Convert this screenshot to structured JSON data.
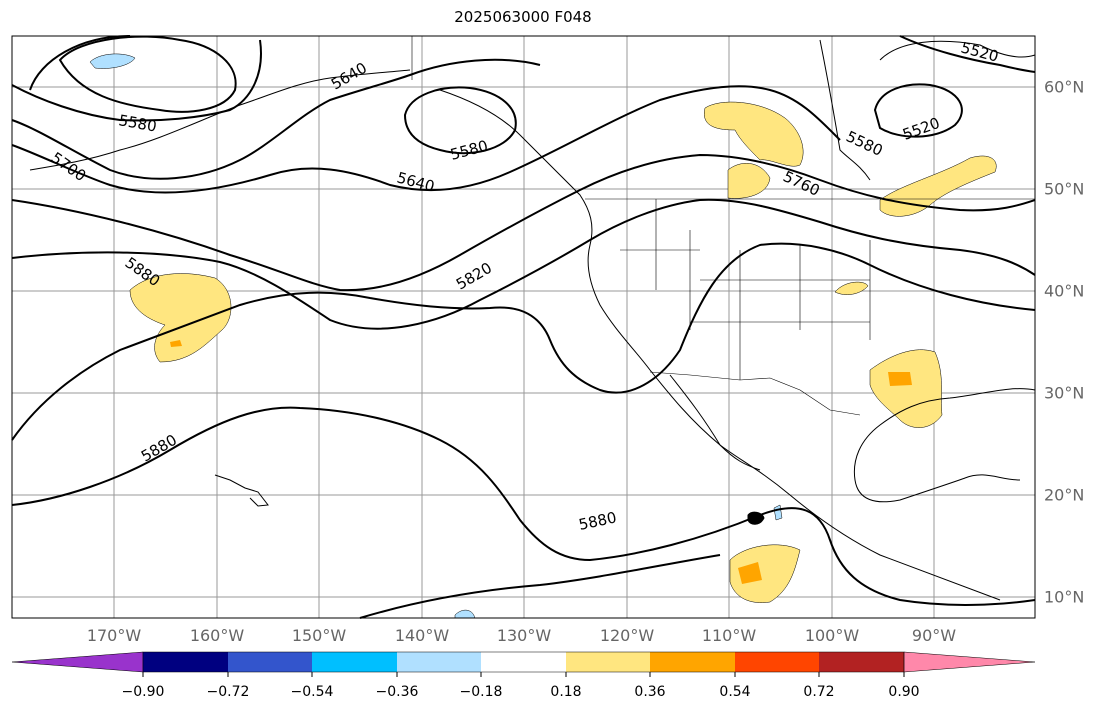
{
  "title": "2025063000 F048",
  "map": {
    "longitude_labels": [
      "170°W",
      "160°W",
      "150°W",
      "140°W",
      "130°W",
      "120°W",
      "110°W",
      "100°W",
      "90°W"
    ],
    "latitude_labels": [
      "60°N",
      "50°N",
      "40°N",
      "30°N",
      "20°N",
      "10°N"
    ],
    "contour_labels": [
      "5520",
      "5520",
      "5580",
      "5580",
      "5580",
      "5640",
      "5640",
      "5700",
      "5760",
      "5820",
      "5880",
      "5880",
      "5880"
    ],
    "contour_color": "#000000",
    "grid_color": "#999999",
    "coastline_color": "#000000"
  },
  "colorbar": {
    "ticks": [
      "−0.90",
      "−0.72",
      "−0.54",
      "−0.36",
      "−0.18",
      "0.18",
      "0.36",
      "0.54",
      "0.72",
      "0.90"
    ],
    "under_color": "#9933cc",
    "colors": [
      "#000080",
      "#3355cc",
      "#00bfff",
      "#b0e0ff",
      "#ffffff",
      "#ffe680",
      "#ffa500",
      "#ff4500",
      "#b22222"
    ],
    "over_color": "#ff88aa"
  }
}
